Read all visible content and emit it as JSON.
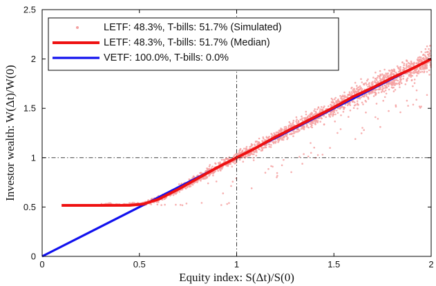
{
  "chart_data": {
    "type": "scatter",
    "title": "",
    "xlabel": "Equity index: S(Δt)/S(0)",
    "ylabel": "Investor wealth: W(Δt)/W(0)",
    "xlim": [
      0,
      2
    ],
    "ylim": [
      0,
      2.5
    ],
    "x_ticks": [
      "0",
      "0.5",
      "1",
      "1.5",
      "2"
    ],
    "y_ticks": [
      "0",
      "0.5",
      "1",
      "1.5",
      "2",
      "2.5"
    ],
    "x_tick_values": [
      0,
      0.5,
      1,
      1.5,
      2
    ],
    "y_tick_values": [
      0,
      0.5,
      1,
      1.5,
      2,
      2.5
    ],
    "reference_lines": {
      "x": 1,
      "y": 1,
      "style": "dash-dot"
    },
    "legend_position": "top-left",
    "series": [
      {
        "name": "LETF: 48.3%, T-bills: 51.7% (Simulated)",
        "kind": "scatter",
        "color": "#f4a0a0",
        "x_range": [
          0.3,
          2.0
        ],
        "floor": 0.517,
        "note": "dense cloud of simulated outcomes around the median curve"
      },
      {
        "name": "LETF: 48.3%, T-bills: 51.7% (Median)",
        "kind": "line",
        "color": "#ee1111",
        "x": [
          0.1,
          0.3,
          0.45,
          0.52,
          0.6,
          0.7,
          0.8,
          0.9,
          1.0,
          1.1,
          1.2,
          1.3,
          1.4,
          1.5,
          1.6,
          1.7,
          1.8,
          1.9,
          2.0
        ],
        "y": [
          0.517,
          0.517,
          0.518,
          0.53,
          0.58,
          0.68,
          0.79,
          0.9,
          1.0,
          1.1,
          1.21,
          1.31,
          1.41,
          1.51,
          1.62,
          1.71,
          1.81,
          1.9,
          2.0
        ]
      },
      {
        "name": "VETF: 100.0%, T-bills: 0.0%",
        "kind": "line",
        "color": "#1111ee",
        "x": [
          0,
          2
        ],
        "y": [
          0,
          2
        ]
      }
    ]
  }
}
